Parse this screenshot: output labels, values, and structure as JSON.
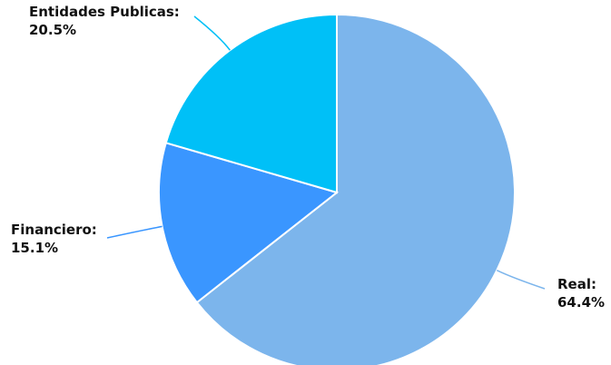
{
  "chart_data": {
    "type": "pie",
    "title": "",
    "start_angle_deg": 0,
    "direction": "clockwise",
    "slices": [
      {
        "label": "Real:",
        "value": 64.4,
        "value_label": "64.4%",
        "color": "#7cb5ec"
      },
      {
        "label": "Financiero:",
        "value": 15.1,
        "value_label": "15.1%",
        "color": "#3a96ff"
      },
      {
        "label": "Entidades Publicas:",
        "value": 20.5,
        "value_label": "20.5%",
        "color": "#00c0f7"
      }
    ],
    "legend": "none",
    "data_labels": "outside-with-leader-lines"
  }
}
